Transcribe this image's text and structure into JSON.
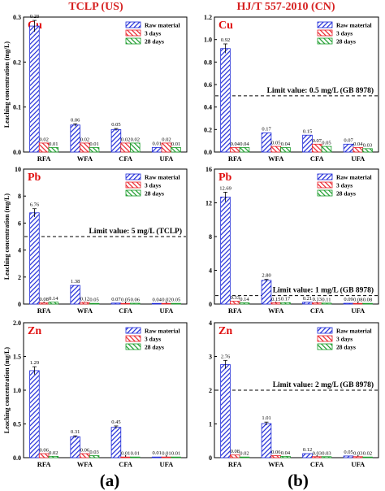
{
  "header": {
    "left": "TCLP (US)",
    "right": "HJ/T 557-2010 (CN)",
    "color": "#d62020"
  },
  "captions": {
    "left": "(a)",
    "right": "(b)"
  },
  "legend": [
    "Raw material",
    "3 days",
    "28 days"
  ],
  "colors": {
    "raw": "#1f2ad8",
    "d3": "#e8222a",
    "d28": "#1a9b2a",
    "metal": "#e01010"
  },
  "chart_data": [
    {
      "id": "a-cu",
      "type": "bar",
      "metal": "Cu",
      "ylabel": "Leaching concentration (mg/L)",
      "categories": [
        "RFA",
        "WFA",
        "CFA",
        "UFA"
      ],
      "ylim": [
        0,
        0.3
      ],
      "yticks": [
        0.0,
        0.1,
        0.2,
        0.3
      ],
      "series": [
        {
          "name": "Raw material",
          "values": [
            0.28,
            0.06,
            0.05,
            0.01
          ],
          "labels": [
            "0.28",
            "0.06",
            "0.05",
            "0.01"
          ]
        },
        {
          "name": "3 days",
          "values": [
            0.02,
            0.02,
            0.02,
            0.02
          ],
          "labels": [
            "0.02",
            "0.02",
            "0.02",
            "0.02"
          ]
        },
        {
          "name": "28 days",
          "values": [
            0.01,
            0.01,
            0.02,
            0.01
          ],
          "labels": [
            "0.01",
            "0.01",
            "0.02",
            "0.01"
          ]
        }
      ]
    },
    {
      "id": "a-pb",
      "type": "bar",
      "metal": "Pb",
      "ylabel": "Leaching concentration (mg/L)",
      "categories": [
        "RFA",
        "WFA",
        "CFA",
        "UFA"
      ],
      "ylim": [
        0,
        10
      ],
      "yticks": [
        0,
        2,
        4,
        6,
        8,
        10
      ],
      "limit": {
        "value": 5,
        "label": "Limit value: 5 mg/L (TCLP)"
      },
      "series": [
        {
          "name": "Raw material",
          "values": [
            6.76,
            1.38,
            0.07,
            0.04
          ],
          "labels": [
            "6.76",
            "1.38",
            "0.07",
            "0.04"
          ]
        },
        {
          "name": "3 days",
          "values": [
            0.08,
            0.12,
            0.05,
            0.02
          ],
          "labels": [
            "0.08",
            "0.12",
            "0.05",
            "0.02"
          ]
        },
        {
          "name": "28 days",
          "values": [
            0.14,
            0.05,
            0.06,
            0.05
          ],
          "labels": [
            "0.14",
            "0.05",
            "0.06",
            "0.05"
          ]
        }
      ]
    },
    {
      "id": "a-zn",
      "type": "bar",
      "metal": "Zn",
      "ylabel": "Leaching concentration (mg/L)",
      "categories": [
        "RFA",
        "WFA",
        "CFA",
        "UFA"
      ],
      "ylim": [
        0,
        2.0
      ],
      "yticks": [
        0.0,
        0.5,
        1.0,
        1.5,
        2.0
      ],
      "series": [
        {
          "name": "Raw material",
          "values": [
            1.29,
            0.31,
            0.45,
            0.01
          ],
          "labels": [
            "1.29",
            "0.31",
            "0.45",
            "0.01"
          ]
        },
        {
          "name": "3 days",
          "values": [
            0.06,
            0.06,
            0.01,
            0.01
          ],
          "labels": [
            "0.06",
            "0.06",
            "0.01",
            "0.01"
          ]
        },
        {
          "name": "28 days",
          "values": [
            0.02,
            0.03,
            0.01,
            0.01
          ],
          "labels": [
            "0.02",
            "0.03",
            "0.01",
            "0.01"
          ]
        }
      ]
    },
    {
      "id": "b-cu",
      "type": "bar",
      "metal": "Cu",
      "categories": [
        "RFA",
        "WFA",
        "CFA",
        "UFA"
      ],
      "ylim": [
        0,
        1.2
      ],
      "yticks": [
        0.0,
        0.2,
        0.4,
        0.6,
        0.8,
        1.0,
        1.2
      ],
      "limit": {
        "value": 0.5,
        "label": "Limit value: 0.5 mg/L (GB 8978)"
      },
      "series": [
        {
          "name": "Raw material",
          "values": [
            0.92,
            0.17,
            0.15,
            0.07
          ],
          "labels": [
            "0.92",
            "0.17",
            "0.15",
            "0.07"
          ]
        },
        {
          "name": "3 days",
          "values": [
            0.04,
            0.05,
            0.07,
            0.04
          ],
          "labels": [
            "0.04",
            "0.05",
            "0.07",
            "0.04"
          ]
        },
        {
          "name": "28 days",
          "values": [
            0.04,
            0.04,
            0.05,
            0.03
          ],
          "labels": [
            "0.04",
            "0.04",
            "0.05",
            "0.03"
          ]
        }
      ]
    },
    {
      "id": "b-pb",
      "type": "bar",
      "metal": "Pb",
      "categories": [
        "RFA",
        "WFA",
        "CFA",
        "UFA"
      ],
      "ylim": [
        0,
        16
      ],
      "yticks": [
        0,
        4,
        8,
        12,
        16
      ],
      "limit": {
        "value": 1,
        "label": "Limit value: 1 mg/L (GB 8978)"
      },
      "series": [
        {
          "name": "Raw material",
          "values": [
            12.69,
            2.8,
            0.21,
            0.09
          ],
          "labels": [
            "12.69",
            "2.80",
            "0.21",
            "0.09"
          ]
        },
        {
          "name": "3 days",
          "values": [
            0.33,
            0.15,
            0.13,
            0.08
          ],
          "labels": [
            "0.33",
            "0.15",
            "0.13",
            "0.08"
          ]
        },
        {
          "name": "28 days",
          "values": [
            0.14,
            0.17,
            0.11,
            0.08
          ],
          "labels": [
            "0.14",
            "0.17",
            "0.11",
            "0.08"
          ]
        }
      ]
    },
    {
      "id": "b-zn",
      "type": "bar",
      "metal": "Zn",
      "categories": [
        "RFA",
        "WFA",
        "CFA",
        "UFA"
      ],
      "ylim": [
        0,
        4
      ],
      "yticks": [
        0,
        1,
        2,
        3,
        4
      ],
      "limit": {
        "value": 2,
        "label": "Limit value: 2 mg/L (GB 8978)"
      },
      "series": [
        {
          "name": "Raw material",
          "values": [
            2.76,
            1.01,
            0.12,
            0.05
          ],
          "labels": [
            "2.76",
            "1.01",
            "0.12",
            "0.05"
          ]
        },
        {
          "name": "3 days",
          "values": [
            0.08,
            0.06,
            0.03,
            0.03
          ],
          "labels": [
            "0.08",
            "0.06",
            "0.03",
            "0.03"
          ]
        },
        {
          "name": "28 days",
          "values": [
            0.02,
            0.04,
            0.03,
            0.02
          ],
          "labels": [
            "0.02",
            "0.04",
            "0.03",
            "0.02"
          ]
        }
      ]
    }
  ]
}
